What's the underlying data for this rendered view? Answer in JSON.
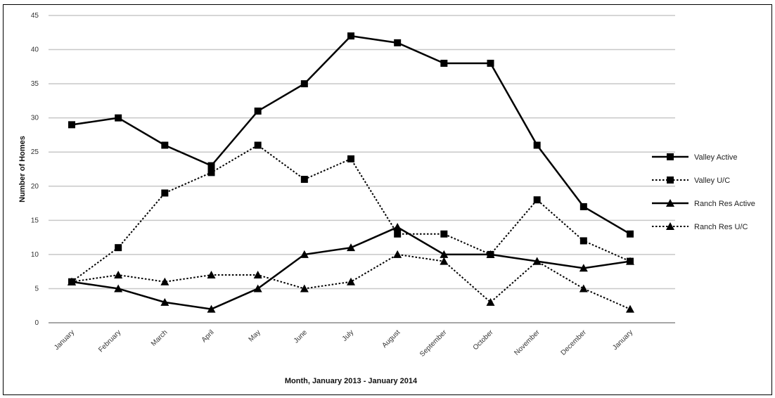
{
  "chart_data": {
    "type": "line",
    "xlabel": "Month, January 2013 - January 2014",
    "ylabel": "Number of Homes",
    "ylim": [
      0,
      45
    ],
    "yticks": [
      0,
      5,
      10,
      15,
      20,
      25,
      30,
      35,
      40,
      45
    ],
    "grid": "horizontal",
    "legend_position": "right",
    "categories": [
      "January",
      "February",
      "March",
      "April",
      "May",
      "June",
      "July",
      "August",
      "September",
      "October",
      "November",
      "December",
      "January"
    ],
    "series": [
      {
        "name": "Valley Active",
        "values": [
          29,
          30,
          26,
          23,
          31,
          35,
          42,
          41,
          38,
          38,
          26,
          17,
          13
        ],
        "line": "solid",
        "marker": "square"
      },
      {
        "name": "Valley U/C",
        "values": [
          6,
          11,
          19,
          22,
          26,
          21,
          24,
          13,
          13,
          10,
          18,
          12,
          9
        ],
        "line": "dotted",
        "marker": "square"
      },
      {
        "name": "Ranch Res Active",
        "values": [
          6,
          5,
          3,
          2,
          5,
          10,
          11,
          14,
          10,
          10,
          9,
          8,
          9
        ],
        "line": "solid",
        "marker": "triangle"
      },
      {
        "name": "Ranch Res U/C",
        "values": [
          6,
          7,
          6,
          7,
          7,
          5,
          6,
          10,
          9,
          3,
          9,
          5,
          2
        ],
        "line": "dotted",
        "marker": "triangle"
      }
    ]
  }
}
